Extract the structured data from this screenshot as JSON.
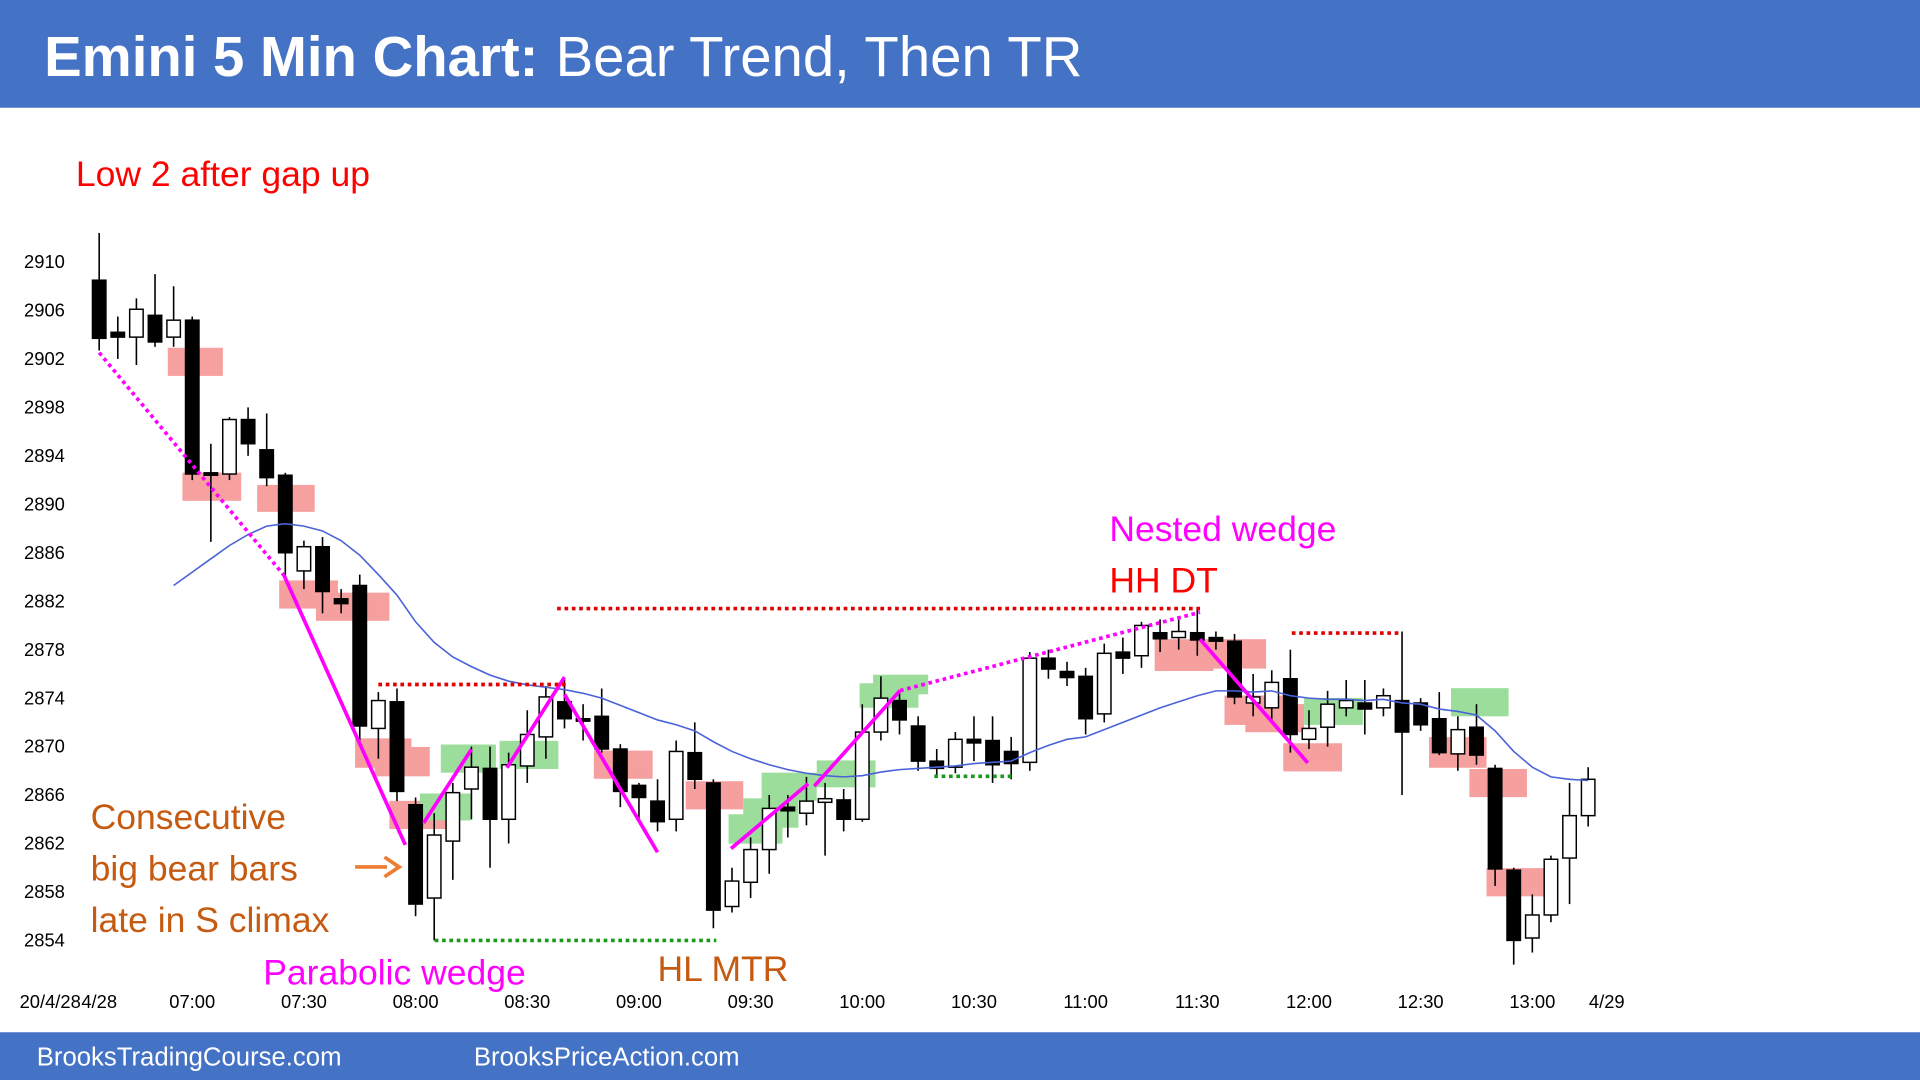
{
  "chart_data": {
    "type": "candlestick",
    "title": "Emini 5 Min Chart:",
    "subtitle": "Bear Trend, Then TR",
    "date_prefix": "20/4/28",
    "categories": [
      "4/28",
      null,
      null,
      null,
      null,
      "07:00",
      null,
      null,
      null,
      null,
      null,
      "07:30",
      null,
      null,
      null,
      null,
      null,
      "08:00",
      null,
      null,
      null,
      null,
      null,
      "08:30",
      null,
      null,
      null,
      null,
      null,
      "09:00",
      null,
      null,
      null,
      null,
      null,
      "09:30",
      null,
      null,
      null,
      null,
      null,
      "10:00",
      null,
      null,
      null,
      null,
      null,
      "10:30",
      null,
      null,
      null,
      null,
      null,
      "11:00",
      null,
      null,
      null,
      null,
      null,
      "11:30",
      null,
      null,
      null,
      null,
      null,
      "12:00",
      null,
      null,
      null,
      null,
      null,
      "12:30",
      null,
      null,
      null,
      null,
      null,
      "13:00",
      null,
      null,
      null,
      "4/29"
    ],
    "open": [
      2908.5,
      2904.2,
      2903.8,
      2905.6,
      2903.8,
      2905.2,
      2892.6,
      2892.5,
      2897,
      2894.5,
      2892.4,
      2884.5,
      2886.5,
      2882.2,
      2883.3,
      2871.5,
      2873.7,
      2865.2,
      2857.5,
      2862.2,
      2866.5,
      2868.2,
      2864,
      2868.4,
      2870.8,
      2873.7,
      2872.3,
      2872.5,
      2869.8,
      2866.8,
      2865.5,
      2864,
      2869.5,
      2867,
      2856.8,
      2858.8,
      2861.5,
      2865,
      2864.5,
      2865.4,
      2865.6,
      2864,
      2871.2,
      2873.8,
      2871.7,
      2868.8,
      2868.3,
      2870.6,
      2870.5,
      2869.6,
      2868.7,
      2877.3,
      2876.2,
      2875.8,
      2872.7,
      2877.8,
      2877.5,
      2879.4,
      2879,
      2879.4,
      2879,
      2878.7,
      2873.6,
      2873.2,
      2875.6,
      2870.6,
      2871.6,
      2873.2,
      2873.6,
      2873.2,
      2873.8,
      2873.6,
      2872.3,
      2869.4,
      2871.6,
      2868.2,
      2859.8,
      2854.2,
      2856.1,
      2860.8,
      2864.3,
      null
    ],
    "high": [
      2912.4,
      2905.5,
      2907,
      2909,
      2908,
      2905.5,
      2895,
      2897.2,
      2898,
      2897.5,
      2892.6,
      2887,
      2887.3,
      2883,
      2884.2,
      2874.5,
      2874.8,
      2865.8,
      2864.5,
      2867,
      2870,
      2870,
      2869.5,
      2873,
      2875,
      2875.5,
      2873.5,
      2874.8,
      2870.2,
      2867,
      2867.3,
      2870.5,
      2872,
      2867.3,
      2860,
      2862.5,
      2866,
      2866,
      2867.5,
      2867,
      2866.5,
      2873.5,
      2875.8,
      2874.5,
      2872.5,
      2869.8,
      2871.2,
      2872.5,
      2872.5,
      2870.8,
      2877.8,
      2878,
      2877,
      2876.5,
      2878.5,
      2879,
      2880.3,
      2880.5,
      2880.5,
      2881.5,
      2879.5,
      2879.3,
      2876,
      2876.3,
      2878,
      2873,
      2874.6,
      2875.5,
      2875.5,
      2874.8,
      2879.5,
      2874,
      2874.5,
      2872.5,
      2873.5,
      2868.5,
      2860,
      2857.8,
      2861,
      2867,
      2868.3,
      null
    ],
    "low": [
      2902.7,
      2902,
      2901.5,
      2903,
      2903,
      2892,
      2886.9,
      2892,
      2894,
      2891.5,
      2884,
      2883,
      2881,
      2881,
      2870,
      2869,
      2865.5,
      2856,
      2854,
      2859,
      2864,
      2860,
      2862,
      2867,
      2869,
      2871.5,
      2870.5,
      2869.5,
      2865,
      2864,
      2863,
      2863,
      2866.5,
      2855,
      2856.3,
      2857.5,
      2859.5,
      2862.5,
      2863.5,
      2861,
      2863,
      2863.8,
      2870.5,
      2871,
      2868,
      2867.5,
      2867.8,
      2868.8,
      2867,
      2867.3,
      2868,
      2875.6,
      2875,
      2871,
      2872,
      2876,
      2876.5,
      2877.8,
      2878,
      2877.5,
      2878,
      2873.5,
      2872.5,
      2872,
      2869.5,
      2869.8,
      2870,
      2872.5,
      2871,
      2872.5,
      2866,
      2871.3,
      2869.3,
      2868,
      2868.5,
      2858.5,
      2852,
      2853,
      2855.5,
      2857,
      2863.4,
      null
    ],
    "close": [
      2903.7,
      2903.8,
      2906.1,
      2903.4,
      2905.2,
      2892.5,
      2892.4,
      2897,
      2895,
      2892.2,
      2886,
      2886.5,
      2882.8,
      2881.8,
      2871.7,
      2873.8,
      2866.3,
      2857,
      2862.7,
      2866.2,
      2868.3,
      2864,
      2868.5,
      2871,
      2874.1,
      2872.3,
      2872.1,
      2869.8,
      2866.3,
      2865.8,
      2863.8,
      2869.6,
      2867.3,
      2856.5,
      2858.9,
      2861.5,
      2864.9,
      2864.7,
      2865.5,
      2865.7,
      2864,
      2871.2,
      2874,
      2872.2,
      2868.8,
      2868.2,
      2870.6,
      2870.3,
      2868.5,
      2868.6,
      2877.3,
      2876.4,
      2875.7,
      2872.3,
      2877.7,
      2877.3,
      2880,
      2878.9,
      2879.5,
      2878.8,
      2878.7,
      2874.1,
      2874.1,
      2875.3,
      2871,
      2871.5,
      2873.5,
      2873.8,
      2873.1,
      2874.2,
      2871.2,
      2871.8,
      2869.5,
      2871.4,
      2869.3,
      2859.9,
      2854,
      2856.1,
      2860.7,
      2864.3,
      2867.3,
      null
    ],
    "up_color": "#ffffff",
    "down_color": "#000000",
    "ema": {
      "color": "#4a62d8",
      "values": [
        null,
        null,
        null,
        null,
        2883.3,
        2884.4,
        2885.5,
        2886.6,
        2887.5,
        2888.2,
        2888.4,
        2888.2,
        2887.8,
        2887.0,
        2885.8,
        2884.2,
        2882.5,
        2880.3,
        2878.6,
        2877.4,
        2876.6,
        2875.9,
        2875.4,
        2875.1,
        2874.9,
        2874.7,
        2874.4,
        2874.0,
        2873.4,
        2872.8,
        2872.2,
        2871.8,
        2871.3,
        2870.4,
        2869.6,
        2869.0,
        2868.5,
        2868.1,
        2867.8,
        2867.6,
        2867.5,
        2867.6,
        2867.9,
        2868.1,
        2868.2,
        2868.3,
        2868.4,
        2868.6,
        2868.7,
        2868.8,
        2869.5,
        2870.1,
        2870.6,
        2870.8,
        2871.4,
        2872.0,
        2872.6,
        2873.2,
        2873.7,
        2874.2,
        2874.6,
        2874.6,
        2874.5,
        2874.6,
        2874.2,
        2874.0,
        2873.9,
        2873.9,
        2873.8,
        2873.9,
        2873.6,
        2873.5,
        2873.1,
        2872.9,
        2872.6,
        2871.3,
        2869.6,
        2868.3,
        2867.5,
        2867.3,
        2867.2,
        null
      ]
    },
    "ylim": [
      2852,
      2913
    ],
    "yticks": [
      2854,
      2858,
      2862,
      2866,
      2870,
      2874,
      2878,
      2882,
      2886,
      2890,
      2894,
      2898,
      2902,
      2906,
      2910
    ],
    "grid": false,
    "annotations": [
      {
        "text": "Low 2 after gap up",
        "color": "#ff0000"
      },
      {
        "text": "Nested wedge",
        "color": "#ff00ff"
      },
      {
        "text": "HH DT",
        "color": "#ff0000"
      },
      {
        "text": "Consecutive",
        "color": "#c55a11"
      },
      {
        "text": "big bear bars",
        "color": "#c55a11"
      },
      {
        "text": "late in S climax",
        "color": "#c55a11"
      },
      {
        "text": "Parabolic wedge",
        "color": "#ff00ff"
      },
      {
        "text": "HL MTR",
        "color": "#c55a11"
      }
    ]
  },
  "footer": {
    "left": "BrooksTradingCourse.com",
    "right": "BrooksPriceAction.com"
  }
}
